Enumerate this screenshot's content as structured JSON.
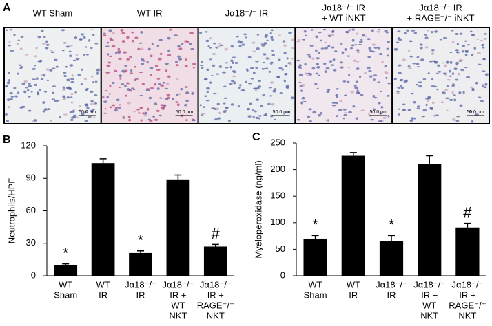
{
  "panel_a": {
    "label": "A",
    "images": [
      {
        "title": [
          "WT Sham"
        ],
        "scale": "50.0 μm"
      },
      {
        "title": [
          "WT IR"
        ],
        "scale": "50.0 μm"
      },
      {
        "title": [
          "Jα18⁻/⁻ IR"
        ],
        "scale": "50.0 μm"
      },
      {
        "title": [
          "Jα18⁻/⁻ IR",
          "+ WT iNKT"
        ],
        "scale": "50.0 μm"
      },
      {
        "title": [
          "Jα18⁻/⁻ IR",
          "+ RAGE⁻/⁻ iNKT"
        ],
        "scale": "50.0 μm"
      }
    ]
  },
  "chart_data": [
    {
      "panel": "B",
      "type": "bar",
      "ylabel": "Neutrophils/HPF",
      "categories": [
        [
          "WT",
          "Sham"
        ],
        [
          "WT",
          "IR"
        ],
        [
          "Jα18⁻/⁻",
          "IR"
        ],
        [
          "Jα18⁻/⁻",
          "IR +",
          "WT",
          "NKT"
        ],
        [
          "Jα18⁻/⁻",
          "IR +",
          "RAGE⁻/⁻",
          "NKT"
        ]
      ],
      "values": [
        10,
        104,
        21,
        89,
        27
      ],
      "errors": [
        1,
        4,
        2,
        4,
        2
      ],
      "annotations": [
        {
          "index": 0,
          "text": "*"
        },
        {
          "index": 2,
          "text": "*"
        },
        {
          "index": 4,
          "text": "#"
        }
      ],
      "color": "#000000",
      "ylim": [
        0,
        120
      ],
      "yticks": [
        0,
        30,
        60,
        90,
        120
      ]
    },
    {
      "panel": "C",
      "type": "bar",
      "ylabel": "Myeloperoxidase (ng/ml)",
      "categories": [
        [
          "WT",
          "Sham"
        ],
        [
          "WT",
          "IR"
        ],
        [
          "Jα18⁻/⁻",
          "IR"
        ],
        [
          "Jα18⁻/⁻",
          "IR +",
          "WT",
          "NKT"
        ],
        [
          "Jα18⁻/⁻",
          "IR +",
          "RAGE⁻/⁻",
          "NKT"
        ]
      ],
      "values": [
        70,
        226,
        65,
        210,
        91
      ],
      "errors": [
        6,
        6,
        11,
        16,
        8
      ],
      "annotations": [
        {
          "index": 0,
          "text": "*"
        },
        {
          "index": 2,
          "text": "*"
        },
        {
          "index": 4,
          "text": "#"
        }
      ],
      "color": "#000000",
      "ylim": [
        0,
        250
      ],
      "yticks": [
        0,
        50,
        100,
        150,
        200,
        250
      ]
    }
  ]
}
